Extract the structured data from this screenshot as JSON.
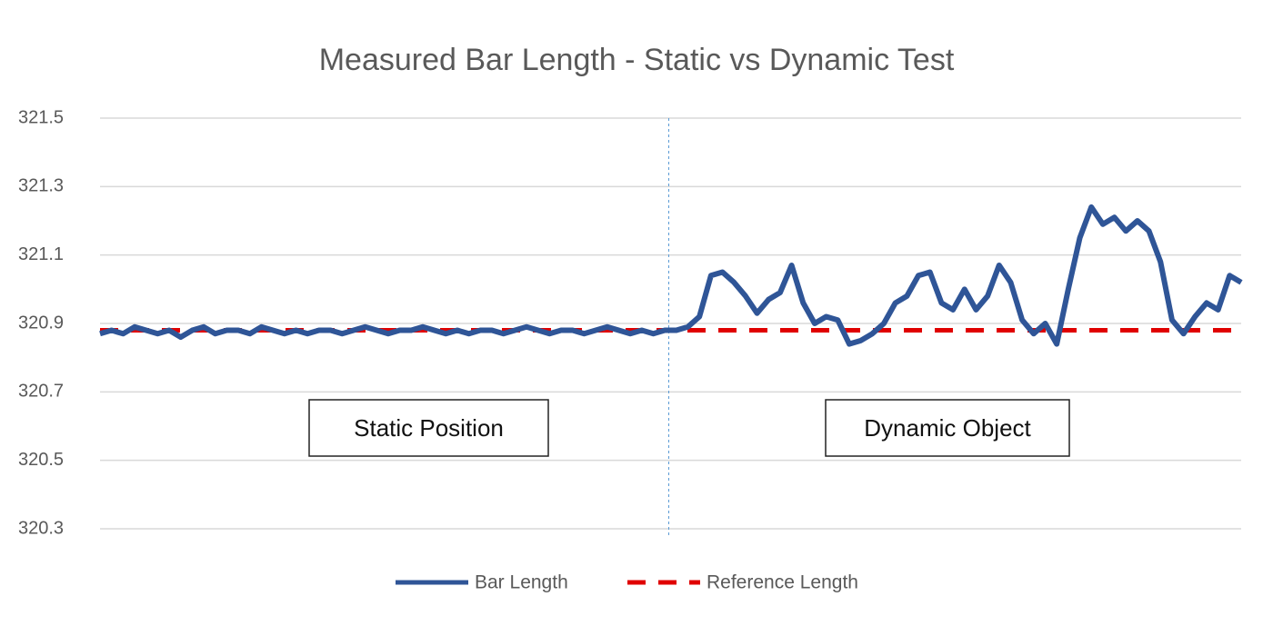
{
  "chart_data": {
    "type": "line",
    "title": "Measured Bar Length - Static vs Dynamic Test",
    "annotations": [
      "Static Position",
      "Dynamic Object"
    ],
    "series": [
      {
        "name": "Bar Length",
        "color": "#2f5597",
        "dash": false,
        "values": [
          320.87,
          320.88,
          320.87,
          320.89,
          320.88,
          320.87,
          320.88,
          320.86,
          320.88,
          320.89,
          320.87,
          320.88,
          320.88,
          320.87,
          320.89,
          320.88,
          320.87,
          320.88,
          320.87,
          320.88,
          320.88,
          320.87,
          320.88,
          320.89,
          320.88,
          320.87,
          320.88,
          320.88,
          320.89,
          320.88,
          320.87,
          320.88,
          320.87,
          320.88,
          320.88,
          320.87,
          320.88,
          320.89,
          320.88,
          320.87,
          320.88,
          320.88,
          320.87,
          320.88,
          320.89,
          320.88,
          320.87,
          320.88,
          320.87,
          320.88,
          320.88,
          320.89,
          320.92,
          321.04,
          321.05,
          321.02,
          320.98,
          320.93,
          320.97,
          320.99,
          321.07,
          320.96,
          320.9,
          320.92,
          320.91,
          320.84,
          320.85,
          320.87,
          320.9,
          320.96,
          320.98,
          321.04,
          321.05,
          320.96,
          320.94,
          321.0,
          320.94,
          320.98,
          321.07,
          321.02,
          320.91,
          320.87,
          320.9,
          320.84,
          321.0,
          321.15,
          321.24,
          321.19,
          321.21,
          321.17,
          321.2,
          321.17,
          321.08,
          320.91,
          320.87,
          320.92,
          320.96,
          320.94,
          321.04,
          321.02
        ]
      },
      {
        "name": "Reference Length",
        "color": "#e00000",
        "dash": true,
        "values": [
          320.88,
          320.88,
          320.88,
          320.88,
          320.88,
          320.88,
          320.88,
          320.88,
          320.88,
          320.88,
          320.88,
          320.88,
          320.88,
          320.88,
          320.88,
          320.88,
          320.88,
          320.88,
          320.88,
          320.88,
          320.88,
          320.88,
          320.88,
          320.88,
          320.88,
          320.88,
          320.88,
          320.88,
          320.88,
          320.88,
          320.88,
          320.88,
          320.88,
          320.88,
          320.88,
          320.88,
          320.88,
          320.88,
          320.88,
          320.88,
          320.88,
          320.88,
          320.88,
          320.88,
          320.88,
          320.88,
          320.88,
          320.88,
          320.88,
          320.88,
          320.88,
          320.88,
          320.88,
          320.88,
          320.88,
          320.88,
          320.88,
          320.88,
          320.88,
          320.88,
          320.88,
          320.88,
          320.88,
          320.88,
          320.88,
          320.88,
          320.88,
          320.88,
          320.88,
          320.88,
          320.88,
          320.88,
          320.88,
          320.88,
          320.88,
          320.88,
          320.88,
          320.88,
          320.88,
          320.88,
          320.88,
          320.88,
          320.88,
          320.88,
          320.88,
          320.88,
          320.88,
          320.88,
          320.88,
          320.88,
          320.88,
          320.88,
          320.88,
          320.88,
          320.88,
          320.88,
          320.88,
          320.88,
          320.88,
          320.88
        ]
      }
    ],
    "ylim": [
      320.3,
      321.5
    ],
    "yticks": [
      320.3,
      320.5,
      320.7,
      320.9,
      321.1,
      321.3,
      321.5
    ],
    "grid": true
  }
}
